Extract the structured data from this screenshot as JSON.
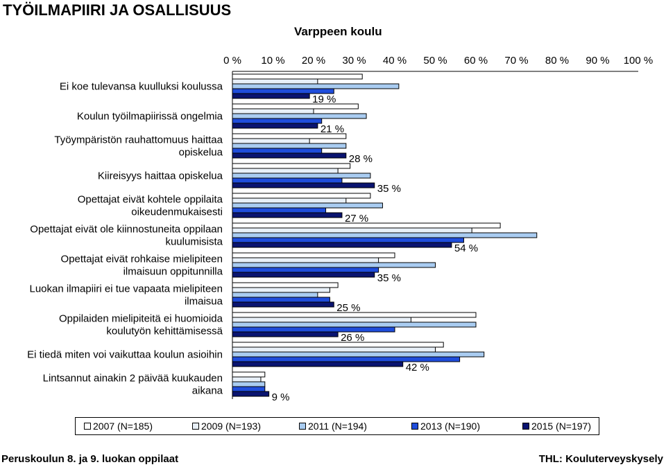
{
  "header": {
    "title": "TYÖILMAPIIRI JA OSALLISUUS",
    "subtitle": "Varppeen koulu"
  },
  "footer": {
    "left": "Peruskoulun 8. ja 9. luokan oppilaat",
    "right": "THL: Kouluterveyskysely"
  },
  "colors": {
    "s2007": "#ffffff",
    "s2009": "#e8f0f8",
    "s2011": "#a9ccf1",
    "s2013": "#1f4ddb",
    "s2015": "#0a1470"
  },
  "chart_data": {
    "type": "bar",
    "orientation": "horizontal",
    "xlim": [
      0,
      100
    ],
    "x_ticks": [
      "0 %",
      "10 %",
      "20 %",
      "30 %",
      "40 %",
      "50 %",
      "60 %",
      "70 %",
      "80 %",
      "90 %",
      "100 %"
    ],
    "x_axis_position": "top",
    "legend_position": "bottom",
    "categories": [
      [
        "Ei koe tulevansa kuulluksi koulussa"
      ],
      [
        "Koulun työilmapiirissä ongelmia"
      ],
      [
        "Työympäristön rauhattomuus haittaa",
        "opiskelua"
      ],
      [
        "Kiireisyys haittaa opiskelua"
      ],
      [
        "Opettajat eivät kohtele oppilaita",
        "oikeudenmukaisesti"
      ],
      [
        "Opettajat eivät ole kiinnostuneita oppilaan",
        "kuulumisista"
      ],
      [
        "Opettajat eivät rohkaise mielipiteen",
        "ilmaisuun oppitunnilla"
      ],
      [
        "Luokan ilmapiiri ei tue vapaata mielipiteen",
        "ilmaisua"
      ],
      [
        "Oppilaiden mielipiteitä ei huomioida",
        "koulutyön kehittämisessä"
      ],
      [
        "Ei tiedä miten voi vaikuttaa koulun asioihin"
      ],
      [
        "Lintsannut ainakin 2 päivää kuukauden",
        "aikana"
      ]
    ],
    "series": [
      {
        "name": "2007 (N=185)",
        "values": [
          32,
          31,
          28,
          29,
          34,
          66,
          40,
          26,
          60,
          52,
          8
        ]
      },
      {
        "name": "2009 (N=193)",
        "values": [
          21,
          20,
          19,
          26,
          28,
          59,
          36,
          24,
          44,
          50,
          7
        ]
      },
      {
        "name": "2011 (N=194)",
        "values": [
          41,
          33,
          28,
          34,
          37,
          75,
          50,
          21,
          60,
          62,
          8
        ]
      },
      {
        "name": "2013 (N=190)",
        "values": [
          25,
          22,
          22,
          27,
          23,
          57,
          36,
          24,
          40,
          56,
          8
        ]
      },
      {
        "name": "2015 (N=197)",
        "values": [
          19,
          21,
          28,
          35,
          27,
          54,
          35,
          25,
          26,
          42,
          9
        ]
      }
    ],
    "data_labels": [
      "19 %",
      "21 %",
      "28 %",
      "35 %",
      "27 %",
      "54 %",
      "35 %",
      "25 %",
      "26 %",
      "42 %",
      "9 %"
    ]
  }
}
